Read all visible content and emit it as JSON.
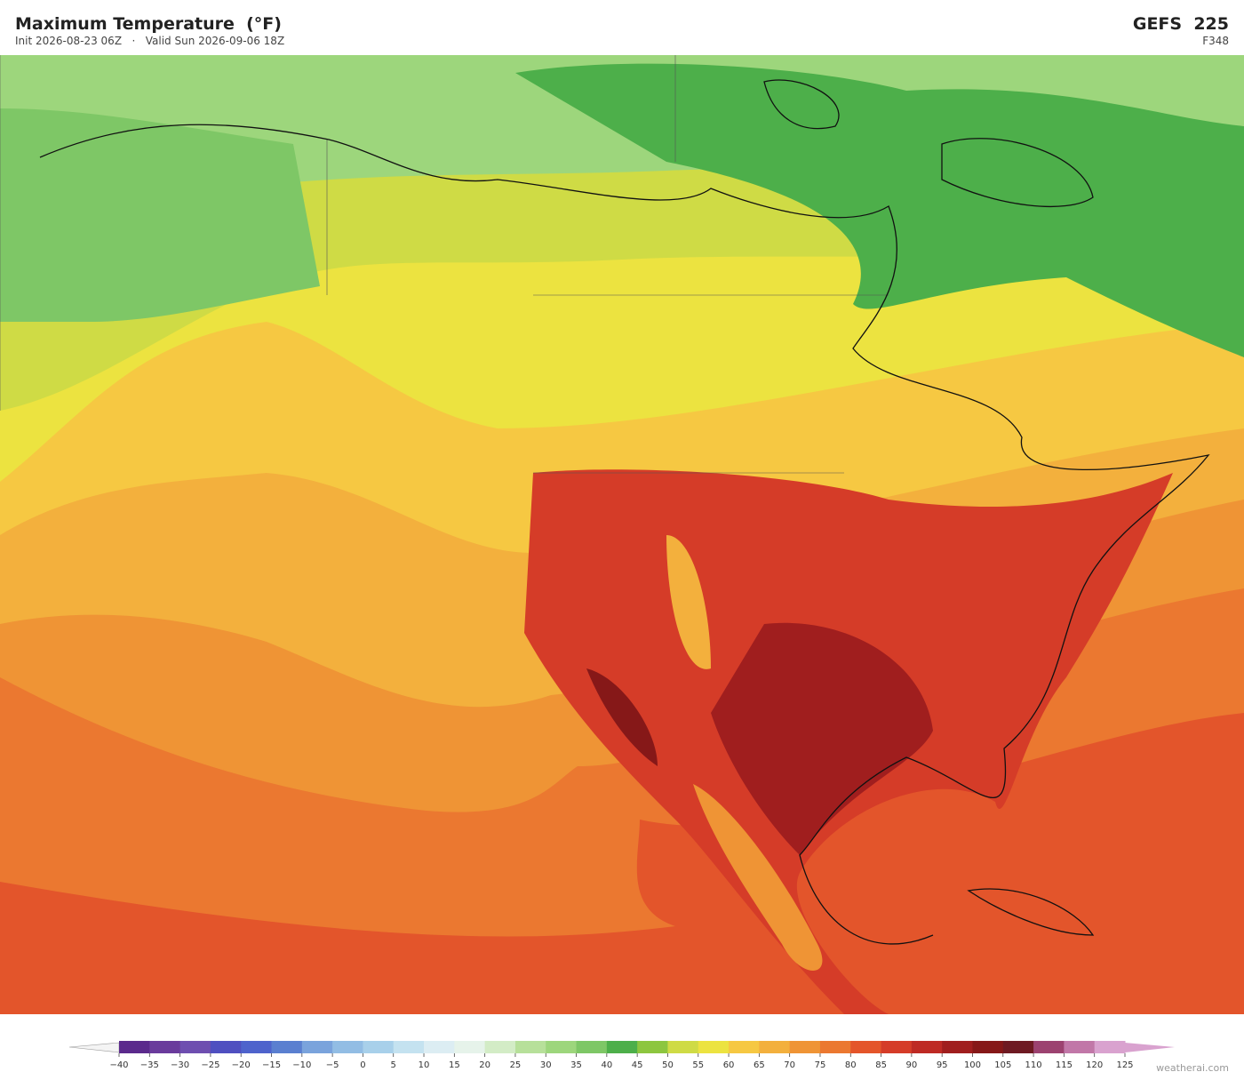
{
  "header": {
    "title": "Maximum Temperature  (°F)",
    "subtitle": "Init 2026-08-23 06Z   ·   Valid Sun 2026-09-06 18Z",
    "model": "GEFS  225",
    "forecast_hour": "F348"
  },
  "colorbar": {
    "lim": [
      -40,
      125
    ],
    "ticks": [
      {
        "value": -40,
        "label": "−40"
      },
      {
        "value": -35,
        "label": "−35"
      },
      {
        "value": -30,
        "label": "−30"
      },
      {
        "value": -25,
        "label": "−25"
      },
      {
        "value": -20,
        "label": "−20"
      },
      {
        "value": -15,
        "label": "−15"
      },
      {
        "value": -10,
        "label": "−10"
      },
      {
        "value": -5,
        "label": "−5"
      },
      0,
      5,
      10,
      15,
      20,
      25,
      30,
      35,
      40,
      45,
      50,
      55,
      60,
      65,
      70,
      75,
      80,
      85,
      90,
      95,
      100,
      105,
      110,
      115,
      120,
      125
    ],
    "colors": [
      "#5b2a8c",
      "#6a3b9c",
      "#6e4eb0",
      "#4f4fc0",
      "#4e63cc",
      "#5a7fd0",
      "#7aa3dc",
      "#92bde4",
      "#a8d0ea",
      "#c4e2f0",
      "#dcedf3",
      "#e6f3ea",
      "#d3ecc6",
      "#b7e09a",
      "#9dd67c",
      "#7ec766",
      "#4daf4a",
      "#8dc63f",
      "#cfdb45",
      "#ece340",
      "#f6c842",
      "#f3b03d",
      "#ef9435",
      "#eb7830",
      "#e4552a",
      "#d53c28",
      "#be2a24",
      "#a01e1e",
      "#861818",
      "#6e1a22",
      "#9c4270",
      "#c177a8",
      "#d9a2cf"
    ]
  },
  "footer": {
    "credit": "weatherai.com"
  }
}
